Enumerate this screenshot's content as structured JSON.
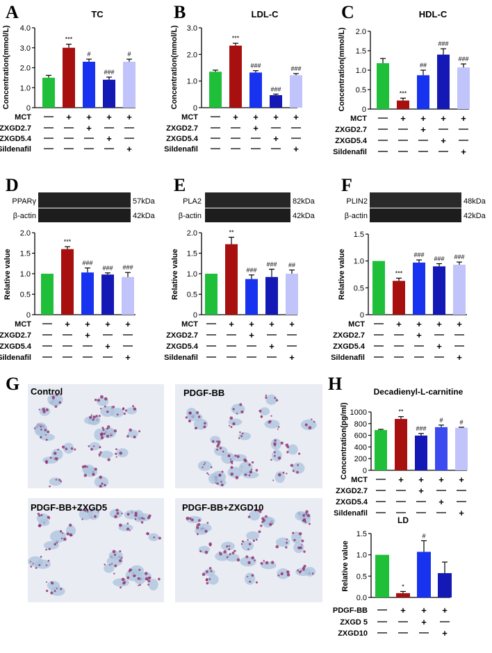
{
  "colors": {
    "c1": "#1fbf3a",
    "c2": "#a80f0f",
    "c3": "#1733f0",
    "c4": "#1418b4",
    "c5": "#c0c4fb",
    "c6": "#3c4bf0"
  },
  "common": {
    "mct": "MCT",
    "zxgd27": "ZXGD2.7",
    "zxgd54": "ZXGD5.4",
    "sild": "Sildenafil",
    "pdgf": "PDGF-BB",
    "zxgd5": "ZXGD 5",
    "zxgd10": "ZXGD10",
    "actin": "β-actin",
    "kda42": "42kDa"
  },
  "panelA": {
    "letter": "A",
    "title": "TC",
    "ylabel": "Concentration(mmol/L)"
  },
  "panelB": {
    "letter": "B",
    "title": "LDL-C",
    "ylabel": "Concentration(mmol/L)"
  },
  "panelC": {
    "letter": "C",
    "title": "HDL-C",
    "ylabel": "Concentration(mmol/L)"
  },
  "panelD": {
    "letter": "D",
    "protein": "PPARγ",
    "kda": "57kDa",
    "ylabel": "Relative value"
  },
  "panelE": {
    "letter": "E",
    "protein": "PLA2",
    "kda": "82kDa",
    "ylabel": "Relative value"
  },
  "panelF": {
    "letter": "F",
    "protein": "PLIN2",
    "kda": "48kDa",
    "ylabel": "Relative value"
  },
  "panelG": {
    "letter": "G",
    "images": [
      "Control",
      "PDGF-BB",
      "PDGF-BB+ZXGD5",
      "PDGF-BB+ZXGD10"
    ]
  },
  "panelH": {
    "letter": "H",
    "title": "Decadienyl-L-carnitine",
    "ylabel": "Concentration(pg/ml)"
  },
  "panelLD": {
    "title": "LD",
    "ylabel": "Relative value"
  },
  "chart_data": [
    {
      "id": "A",
      "type": "bar",
      "title": "TC",
      "ylabel": "Concentration(mmol/L)",
      "ylim": [
        0,
        4
      ],
      "yticks": [
        "0",
        "1.0",
        "2.0",
        "3.0",
        "4.0"
      ],
      "values": [
        1.5,
        3.0,
        2.3,
        1.4,
        2.3
      ],
      "errors": [
        0.12,
        0.18,
        0.13,
        0.13,
        0.13
      ],
      "annotations": [
        "",
        "***",
        "#",
        "###",
        "#"
      ]
    },
    {
      "id": "B",
      "type": "bar",
      "title": "LDL-C",
      "ylabel": "Concentration(mmol/L)",
      "ylim": [
        0,
        3
      ],
      "yticks": [
        "0",
        "1.0",
        "2.0",
        "3.0"
      ],
      "values": [
        1.35,
        2.33,
        1.32,
        0.47,
        1.22
      ],
      "errors": [
        0.06,
        0.09,
        0.07,
        0.04,
        0.06
      ],
      "annotations": [
        "",
        "***",
        "###",
        "###",
        "###"
      ]
    },
    {
      "id": "C",
      "type": "bar",
      "title": "HDL-C",
      "ylabel": "Concentration(mmol/L)",
      "ylim": [
        0,
        2
      ],
      "yticks": [
        "0",
        "0.5",
        "1.0",
        "1.5",
        "2.0"
      ],
      "values": [
        1.18,
        0.22,
        0.87,
        1.4,
        1.07
      ],
      "errors": [
        0.12,
        0.06,
        0.13,
        0.15,
        0.09
      ],
      "annotations": [
        "",
        "***",
        "##",
        "###",
        "###"
      ]
    },
    {
      "id": "D",
      "type": "bar",
      "ylabel": "Relative value",
      "ylim": [
        0,
        2
      ],
      "yticks": [
        "0",
        "0.5",
        "1.0",
        "1.5",
        "2.0"
      ],
      "values": [
        1.0,
        1.6,
        1.03,
        0.98,
        0.92
      ],
      "errors": [
        0,
        0.06,
        0.11,
        0.04,
        0.11
      ],
      "annotations": [
        "",
        "***",
        "###",
        "###",
        "###"
      ]
    },
    {
      "id": "E",
      "type": "bar",
      "ylabel": "Relative value",
      "ylim": [
        0,
        2
      ],
      "yticks": [
        "0",
        "0.5",
        "1.0",
        "1.5",
        "2.0"
      ],
      "values": [
        1.0,
        1.72,
        0.87,
        0.92,
        1.0
      ],
      "errors": [
        0,
        0.17,
        0.1,
        0.19,
        0.09
      ],
      "annotations": [
        "",
        "**",
        "###",
        "###",
        "##"
      ]
    },
    {
      "id": "F",
      "type": "bar",
      "ylabel": "Relative value",
      "ylim": [
        0,
        1.5
      ],
      "yticks": [
        "0",
        "0.5",
        "1.0",
        "1.5"
      ],
      "values": [
        1.0,
        0.63,
        0.97,
        0.9,
        0.93
      ],
      "errors": [
        0,
        0.05,
        0.05,
        0.05,
        0.05
      ],
      "annotations": [
        "",
        "***",
        "###",
        "###",
        "###"
      ]
    },
    {
      "id": "H",
      "type": "bar",
      "title": "Decadienyl-L-carnitine",
      "ylabel": "Concentration(pg/ml)",
      "ylim": [
        0,
        1000
      ],
      "yticks": [
        "0",
        "200",
        "400",
        "600",
        "800",
        "1000"
      ],
      "values": [
        690,
        880,
        595,
        740,
        730
      ],
      "errors": [
        12,
        40,
        35,
        35,
        8
      ],
      "annotations": [
        "",
        "**",
        "###",
        "#",
        "#"
      ]
    },
    {
      "id": "LD",
      "type": "bar",
      "title": "LD",
      "ylabel": "Relative value",
      "ylim": [
        0,
        1.5
      ],
      "yticks": [
        "0.0",
        "0.5",
        "1.0",
        "1.5"
      ],
      "values": [
        1.0,
        0.1,
        1.07,
        0.57
      ],
      "errors": [
        0,
        0.04,
        0.26,
        0.26
      ],
      "annotations": [
        "",
        "*",
        "#",
        ""
      ]
    }
  ]
}
